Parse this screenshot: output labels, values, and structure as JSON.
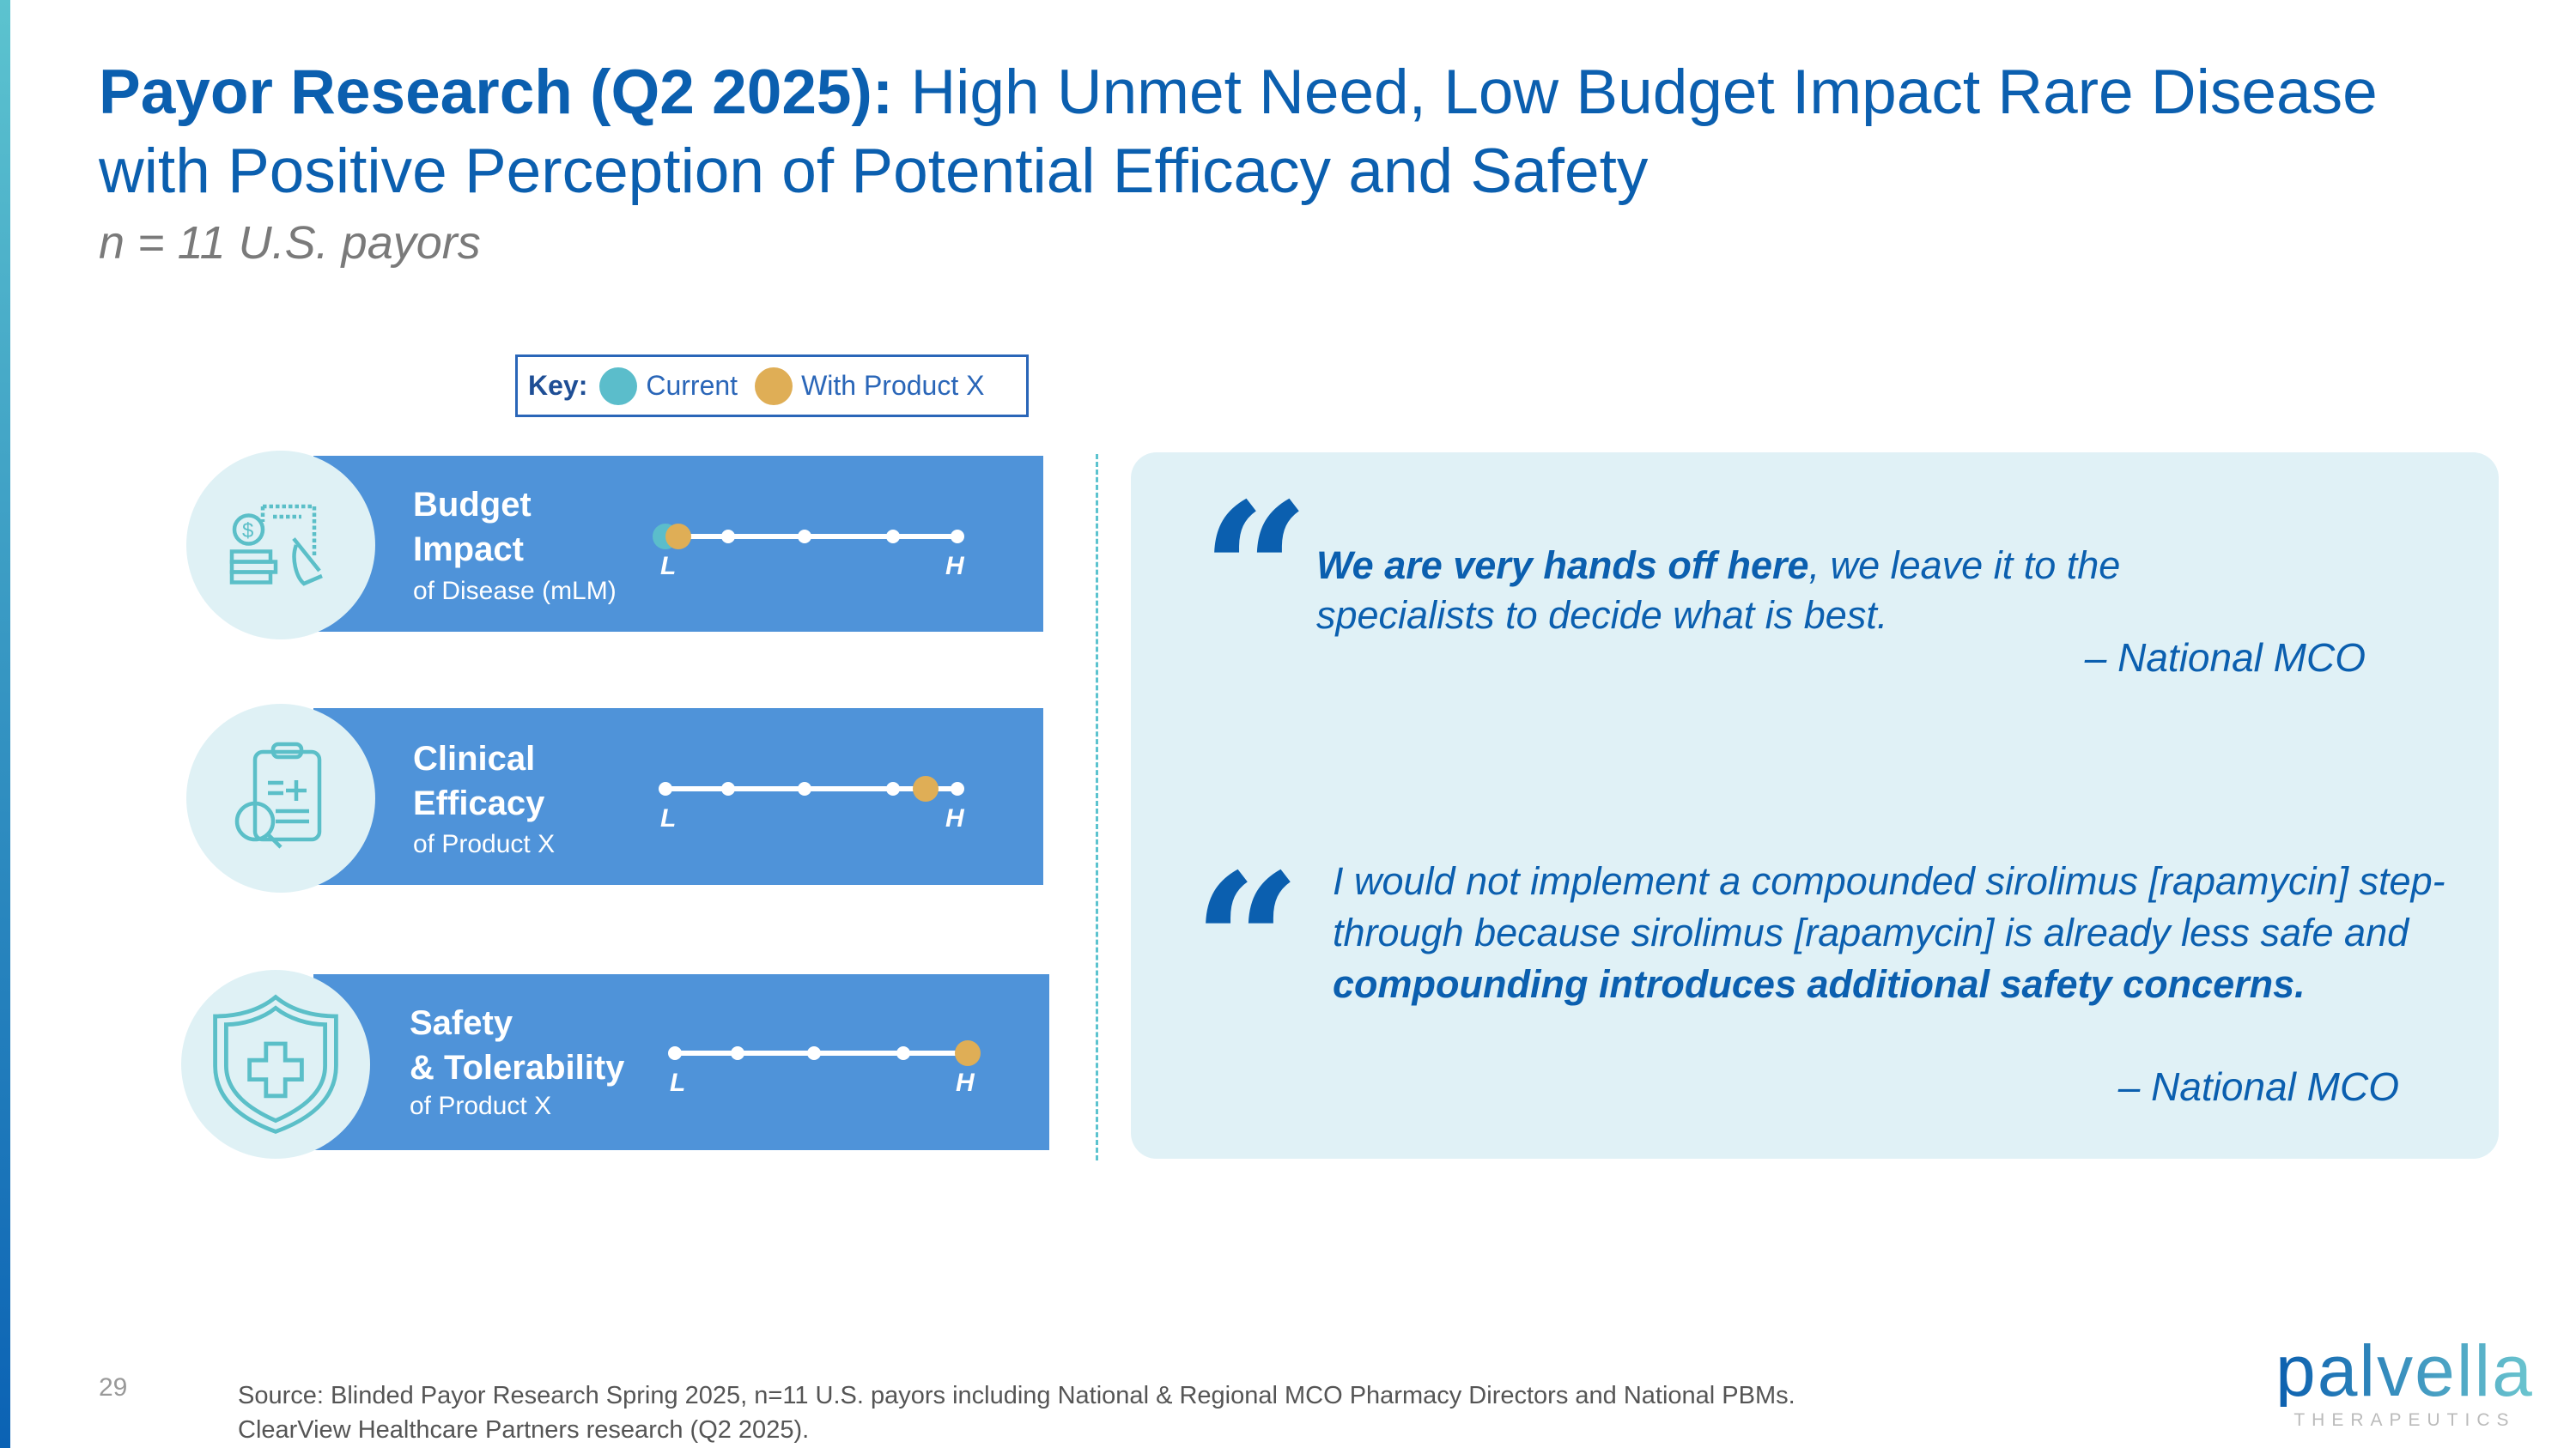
{
  "header": {
    "title_bold": "Payor Research (Q2 2025):",
    "title_rest": " High Unmet Need, Low Budget Impact Rare Disease with Positive Perception of Potential Efficacy and Safety",
    "subtitle": "n = 11 U.S. payors"
  },
  "key": {
    "label": "Key:",
    "items": [
      {
        "label": "Current",
        "color": "#5BBDCB"
      },
      {
        "label": "With Product X",
        "color": "#DFAE56"
      }
    ]
  },
  "scale": {
    "low_label": "L",
    "high_label": "H",
    "points": 5
  },
  "rows": [
    {
      "title1": "Budget",
      "title2": "Impact",
      "subtitle": "of Disease (mLM)",
      "icon": "budget-bill-icon",
      "current": 1,
      "with_product": 1.1
    },
    {
      "title1": "Clinical",
      "title2": "Efficacy",
      "subtitle": "of Product X",
      "icon": "clipboard-magnifier-icon",
      "current": null,
      "with_product": 4.5
    },
    {
      "title1": "Safety",
      "title2": "& Tolerability",
      "subtitle": "of Product X",
      "icon": "shield-cross-icon",
      "current": null,
      "with_product": 5
    }
  ],
  "quotes": [
    {
      "bold": "We are very hands off here",
      "rest": ", we leave it to the specialists to decide what is best.",
      "attribution": "– National MCO"
    },
    {
      "pre": "I would not implement a compounded sirolimus [rapamycin] step-through because sirolimus [rapamycin] is already less safe and ",
      "bold": "compounding introduces additional safety concerns.",
      "attribution": "– National MCO"
    }
  ],
  "footer": {
    "page_number": "29",
    "source_line1": "Source: Blinded Payor Research Spring 2025, n=11 U.S. payors including National & Regional MCO Pharmacy Directors and National PBMs.",
    "source_line2": "ClearView Healthcare Partners research (Q2 2025)."
  },
  "logo": {
    "word": "palvella",
    "sub": "THERAPEUTICS"
  },
  "colors": {
    "brand_blue": "#0B5FAF",
    "band": "#4F93D9",
    "teal": "#5BBFC8",
    "quote_bg": "#E0F1F6"
  }
}
